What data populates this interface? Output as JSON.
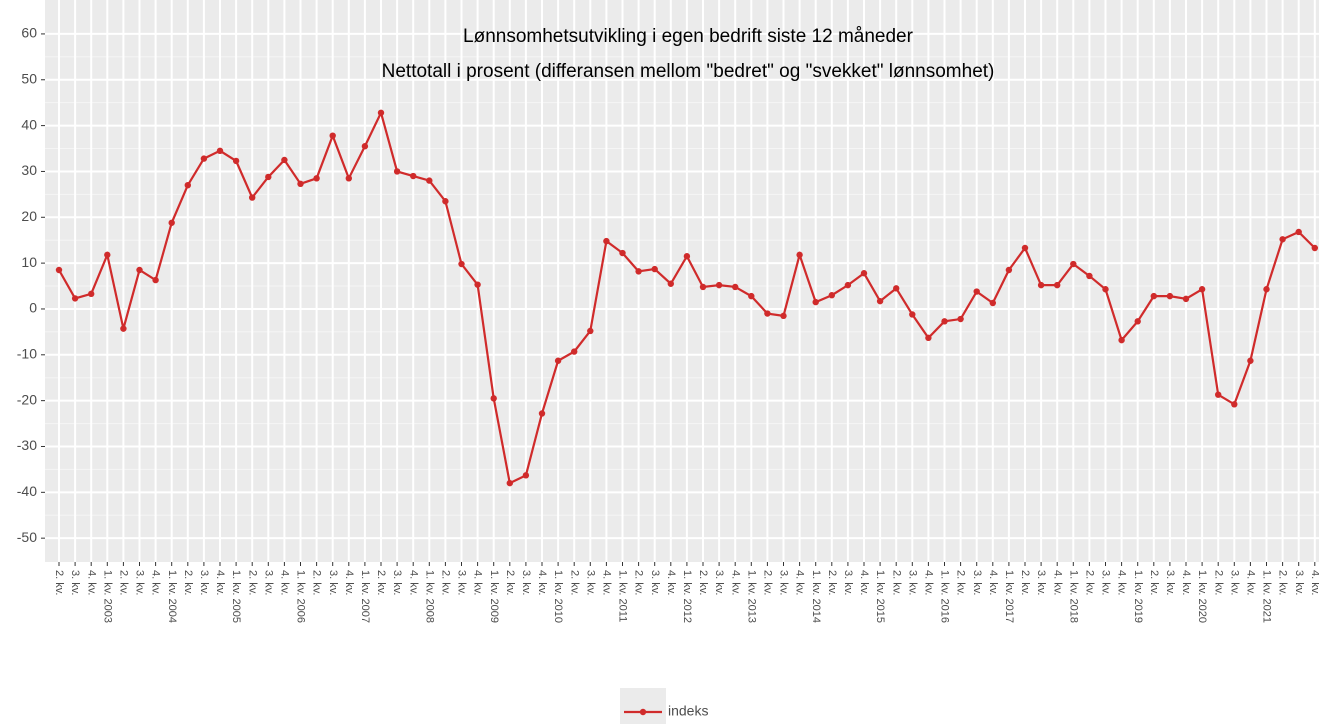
{
  "chart_data": {
    "type": "line",
    "title": "Lønnsomhetsutvikling i egen bedrift siste 12 måneder",
    "subtitle": "Nettotall i prosent (differansen mellom \"bedret\" og \"svekket\" lønnsomhet)",
    "categories": [
      "2. kv.",
      "3. kv.",
      "4. kv.",
      "1. kv. 2003",
      "2. kv.",
      "3. kv.",
      "4. kv.",
      "1. kv. 2004",
      "2. kv.",
      "3. kv.",
      "4. kv.",
      "1. kv. 2005",
      "2. kv.",
      "3. kv.",
      "4. kv.",
      "1. kv. 2006",
      "2. kv.",
      "3. kv.",
      "4. kv.",
      "1. kv. 2007",
      "2. kv.",
      "3. kv.",
      "4. kv.",
      "1. kv. 2008",
      "2. kv.",
      "3. kv.",
      "4. kv.",
      "1. kv. 2009",
      "2. kv.",
      "3. kv.",
      "4. kv.",
      "1. kv. 2010",
      "2. kv.",
      "3. kv.",
      "4. kv.",
      "1. kv. 2011",
      "2. kv.",
      "3. kv.",
      "4. kv.",
      "1. kv. 2012",
      "2. kv.",
      "3. kv.",
      "4. kv.",
      "1. kv. 2013",
      "2. kv.",
      "3. kv.",
      "4. kv.",
      "1. kv. 2014",
      "2. kv.",
      "3. kv.",
      "4. kv.",
      "1. kv. 2015",
      "2. kv.",
      "3. kv.",
      "4. kv.",
      "1. kv. 2016",
      "2. kv.",
      "3. kv.",
      "4. kv.",
      "1. kv. 2017",
      "2. kv.",
      "3. kv.",
      "4. kv.",
      "1. kv. 2018",
      "2. kv.",
      "3. kv.",
      "4. kv.",
      "1. kv. 2019",
      "2. kv.",
      "3. kv.",
      "4. kv.",
      "1. kv. 2020",
      "2. kv.",
      "3. kv.",
      "4. kv.",
      "1. kv. 2021",
      "2. kv.",
      "3. kv.",
      "4. kv."
    ],
    "series": [
      {
        "name": "indeks",
        "color": "#d02b2b",
        "values": [
          8.5,
          2.3,
          3.3,
          11.8,
          -4.3,
          8.5,
          6.3,
          18.8,
          27,
          32.8,
          34.5,
          32.3,
          24.3,
          28.8,
          32.5,
          27.3,
          28.5,
          37.8,
          28.5,
          35.5,
          42.8,
          30,
          29,
          28,
          23.5,
          9.8,
          5.3,
          -19.5,
          -38,
          -36.3,
          -22.8,
          -11.3,
          -9.3,
          -4.8,
          14.8,
          12.2,
          8.2,
          8.7,
          5.5,
          11.5,
          4.8,
          5.2,
          4.8,
          2.8,
          -1,
          -1.5,
          11.8,
          1.5,
          3,
          5.2,
          7.8,
          1.7,
          4.5,
          -1.2,
          -6.3,
          -2.7,
          -2.2,
          3.8,
          1.3,
          8.5,
          13.3,
          5.2,
          5.2,
          9.8,
          7.2,
          4.3,
          -6.8,
          -2.7,
          2.8,
          2.8,
          2.2,
          4.3,
          -18.7,
          -20.8,
          -11.3,
          4.3,
          15.2,
          16.8,
          13.3
        ]
      }
    ],
    "ylim": [
      -55.2,
      67.4
    ],
    "yticks": [
      -50,
      -40,
      -30,
      -20,
      -10,
      0,
      10,
      20,
      30,
      40,
      50,
      60
    ],
    "grid": true,
    "legend": "bottom"
  }
}
